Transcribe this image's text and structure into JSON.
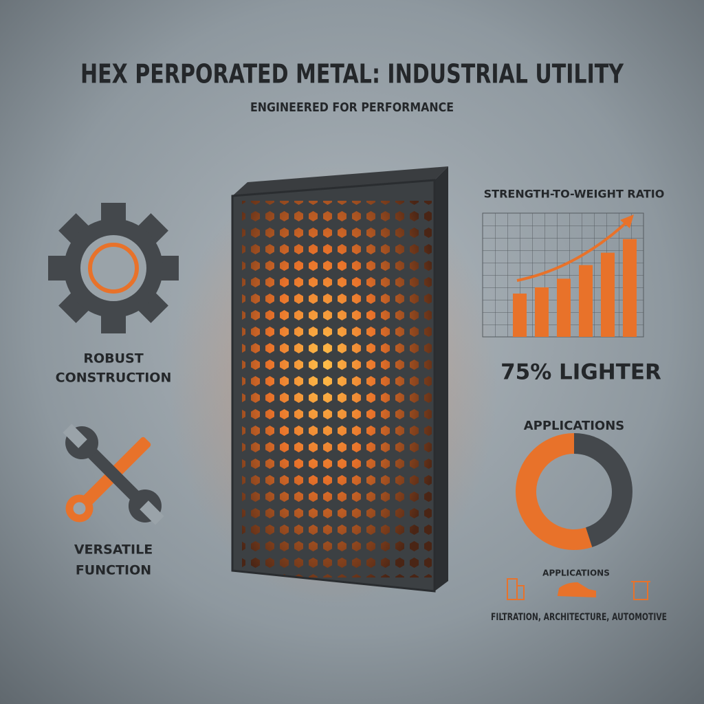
{
  "header": {
    "title": "HEX PERPORATED METAL: INDUSTRIAL UTILITY",
    "subtitle": "ENGINEERED FOR PERFORMANCE"
  },
  "features": [
    {
      "label_lines": [
        "ROBUST",
        "CONSTRUCTION"
      ]
    },
    {
      "label_lines": [
        "VERSATILE",
        "FUNCTION"
      ]
    }
  ],
  "strength_chart": {
    "title": "STRENGTH-TO-WEIGHT RATIO",
    "values": [
      3.5,
      4,
      4.7,
      5.8,
      6.8,
      7.9
    ],
    "ylim": [
      0,
      10
    ],
    "color": "#e8722a",
    "callout": "75% LIGHTER"
  },
  "applications": {
    "title": "APPLICATIONS",
    "values": [
      45,
      55
    ],
    "colors": [
      "#44484c",
      "#e8722a"
    ],
    "caption": "APPLICATIONS",
    "list": "FILTRATION, ARCHITECTURE, AUTOMOTIVE"
  }
}
